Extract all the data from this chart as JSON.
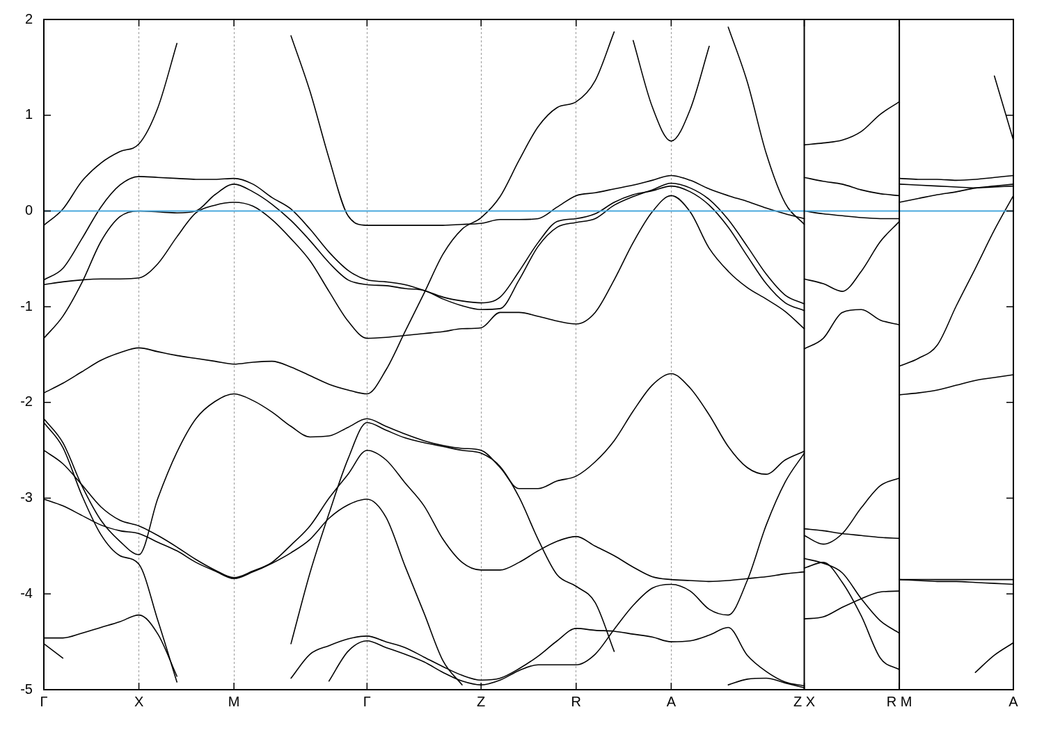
{
  "chart_data": {
    "type": "line",
    "categories": [
      "Γ",
      null,
      null,
      null,
      null,
      "X",
      null,
      null,
      null,
      null,
      "M",
      null,
      null,
      null,
      null,
      null,
      null,
      "Γ",
      null,
      null,
      null,
      null,
      null,
      "Z",
      null,
      null,
      null,
      null,
      "R",
      null,
      null,
      null,
      null,
      "A",
      null,
      null,
      null,
      null,
      null,
      null,
      "Z X",
      null,
      null,
      null,
      null,
      "R M",
      null,
      null,
      null,
      null,
      null,
      "A"
    ],
    "ylim": [
      -5,
      2
    ],
    "yticks": [
      -5,
      -4,
      -3,
      -2,
      -1,
      0,
      1,
      2
    ],
    "grid": "x",
    "ref_lines": [
      {
        "axis": "y",
        "value": 0,
        "color": "#4aa9de"
      },
      {
        "axis": "x",
        "value": "Z X",
        "color": "#000000"
      },
      {
        "axis": "x",
        "value": "R M",
        "color": "#000000"
      }
    ],
    "series": [
      {
        "color": "#000000",
        "values": [
          -0.15,
          0.02,
          0.31,
          0.5,
          0.62,
          0.7,
          1.08,
          1.75,
          null,
          null,
          null,
          null,
          null,
          null,
          null,
          null,
          null,
          null,
          null,
          null,
          null,
          null,
          null,
          null,
          null,
          null,
          null,
          null,
          null,
          null,
          null,
          null,
          null,
          null,
          null,
          null,
          null,
          null,
          null,
          null,
          null,
          null,
          null,
          null,
          null,
          null,
          null,
          null,
          null,
          null,
          null,
          null
        ]
      },
      {
        "color": "#000000",
        "values": [
          null,
          null,
          null,
          null,
          null,
          null,
          null,
          null,
          null,
          null,
          null,
          null,
          null,
          1.83,
          1.25,
          0.55,
          -0.05,
          -0.15,
          -0.15,
          -0.15,
          -0.15,
          -0.15,
          -0.14,
          -0.13,
          -0.09,
          -0.09,
          -0.08,
          0.04,
          0.16,
          0.19,
          0.23,
          0.27,
          0.32,
          0.37,
          0.32,
          0.23,
          0.16,
          0.1,
          0.03,
          -0.03,
          -0.08,
          null,
          null,
          null,
          null,
          null,
          null,
          null,
          null,
          null,
          null,
          null
        ]
      },
      {
        "color": "#000000",
        "values": [
          -1.9,
          -1.8,
          -1.68,
          -1.56,
          -1.48,
          -1.43,
          -1.47,
          -1.51,
          -1.54,
          -1.57,
          -1.6,
          -1.58,
          -1.57,
          -1.63,
          -1.72,
          -1.81,
          -1.87,
          -1.91,
          -1.66,
          -1.26,
          -0.86,
          -0.45,
          -0.19,
          -0.07,
          0.15,
          0.53,
          0.88,
          1.08,
          1.14,
          1.36,
          1.87,
          null,
          null,
          null,
          null,
          null,
          null,
          null,
          null,
          null,
          null,
          null,
          null,
          null,
          null,
          null,
          null,
          null,
          null,
          null,
          null,
          null
        ]
      },
      {
        "color": "#000000",
        "values": [
          null,
          null,
          null,
          null,
          null,
          null,
          null,
          null,
          null,
          null,
          null,
          null,
          null,
          null,
          null,
          null,
          null,
          null,
          null,
          null,
          null,
          null,
          null,
          null,
          null,
          null,
          null,
          null,
          null,
          null,
          null,
          1.78,
          1.09,
          0.73,
          1.06,
          1.72,
          null,
          null,
          null,
          null,
          null,
          null,
          null,
          null,
          null,
          null,
          null,
          null,
          null,
          null,
          null,
          null
        ]
      },
      {
        "color": "#000000",
        "values": [
          null,
          null,
          null,
          null,
          null,
          null,
          null,
          null,
          null,
          null,
          null,
          null,
          null,
          null,
          null,
          null,
          null,
          null,
          null,
          null,
          null,
          null,
          null,
          null,
          null,
          null,
          null,
          null,
          null,
          null,
          null,
          null,
          null,
          null,
          null,
          null,
          1.92,
          1.35,
          0.6,
          0.08,
          -0.14,
          null,
          null,
          null,
          null,
          null,
          null,
          null,
          null,
          null,
          null,
          null
        ]
      },
      {
        "color": "#000000",
        "values": [
          -0.72,
          -0.6,
          -0.29,
          0.04,
          0.27,
          0.36,
          0.35,
          0.34,
          0.33,
          0.33,
          0.34,
          0.28,
          0.14,
          0.02,
          -0.19,
          -0.43,
          -0.62,
          -0.72,
          -0.74,
          -0.77,
          -0.83,
          -0.9,
          -0.94,
          -0.96,
          -0.9,
          -0.63,
          -0.33,
          -0.11,
          -0.08,
          -0.03,
          0.09,
          0.17,
          0.21,
          0.26,
          0.2,
          0.06,
          -0.17,
          -0.47,
          -0.76,
          -0.96,
          -1.04,
          null,
          null,
          null,
          null,
          null,
          null,
          null,
          null,
          null,
          null,
          null
        ]
      },
      {
        "color": "#000000",
        "values": [
          -0.77,
          -0.74,
          -0.72,
          -0.71,
          -0.71,
          -0.7,
          -0.55,
          -0.27,
          -0.02,
          0.06,
          0.09,
          0.05,
          -0.09,
          -0.29,
          -0.52,
          -0.84,
          -1.15,
          -1.33,
          -1.32,
          -1.3,
          -1.28,
          -1.26,
          -1.23,
          -1.22,
          -1.06,
          -1.06,
          -1.1,
          -1.15,
          -1.18,
          -1.06,
          -0.72,
          -0.33,
          -0.01,
          0.16,
          -0.01,
          -0.39,
          -0.63,
          -0.8,
          -0.92,
          -1.05,
          -1.23,
          null,
          null,
          null,
          null,
          null,
          null,
          null,
          null,
          null,
          null,
          null
        ]
      },
      {
        "color": "#000000",
        "values": [
          -1.33,
          -1.1,
          -0.75,
          -0.32,
          -0.06,
          0,
          -0.01,
          -0.02,
          0,
          0.17,
          0.28,
          0.2,
          0.07,
          -0.1,
          -0.31,
          -0.54,
          -0.72,
          -0.77,
          -0.78,
          -0.81,
          -0.83,
          -0.92,
          -0.99,
          -1.03,
          -1.02,
          -0.72,
          -0.37,
          -0.17,
          -0.12,
          -0.08,
          0.06,
          0.15,
          0.22,
          0.29,
          0.24,
          0.12,
          -0.09,
          -0.37,
          -0.66,
          -0.88,
          -0.97,
          null,
          null,
          null,
          null,
          null,
          null,
          null,
          null,
          null,
          null,
          null
        ]
      },
      {
        "color": "#000000",
        "values": [
          -2.17,
          -2.42,
          -2.87,
          -3.23,
          -3.45,
          -3.59,
          -3.0,
          -2.52,
          -2.17,
          -1.99,
          -1.91,
          -1.98,
          -2.1,
          -2.25,
          -2.36,
          -2.35,
          -2.26,
          -2.17,
          -2.25,
          -2.33,
          -2.4,
          -2.45,
          -2.48,
          -2.5,
          -2.68,
          -2.9,
          -2.9,
          -2.82,
          -2.77,
          -2.62,
          -2.4,
          -2.09,
          -1.82,
          -1.7,
          -1.85,
          -2.13,
          -2.46,
          -2.68,
          -2.75,
          -2.6,
          -2.51,
          null,
          null,
          null,
          null,
          null,
          null,
          null,
          null,
          null,
          null,
          null
        ]
      },
      {
        "color": "#000000",
        "values": [
          -2.21,
          -2.47,
          -2.97,
          -3.38,
          -3.6,
          -3.69,
          -4.28,
          -4.92,
          null,
          null,
          null,
          null,
          null,
          null,
          null,
          null,
          null,
          null,
          null,
          null,
          null,
          null,
          null,
          null,
          null,
          null,
          null,
          null,
          null,
          null,
          null,
          null,
          null,
          null,
          null,
          null,
          null,
          null,
          null,
          null,
          null,
          null,
          null,
          null,
          null,
          null,
          null,
          null,
          null,
          null,
          null,
          null
        ]
      },
      {
        "color": "#000000",
        "values": [
          -2.5,
          -2.64,
          -2.86,
          -3.09,
          -3.23,
          -3.29,
          -3.39,
          -3.51,
          -3.64,
          -3.75,
          -3.83,
          -3.76,
          -3.67,
          -3.49,
          -3.29,
          -3.0,
          -2.75,
          -2.5,
          -2.6,
          -2.84,
          -3.08,
          -3.43,
          -3.67,
          -3.75,
          -3.75,
          -3.67,
          -3.55,
          -3.45,
          -3.4,
          -3.5,
          -3.6,
          -3.72,
          -3.82,
          -3.85,
          -3.86,
          -3.87,
          -3.86,
          -3.84,
          -3.82,
          -3.79,
          -3.77,
          null,
          null,
          null,
          null,
          null,
          null,
          null,
          null,
          null,
          null,
          null
        ]
      },
      {
        "color": "#000000",
        "values": [
          -3.01,
          -3.08,
          -3.18,
          -3.28,
          -3.34,
          -3.37,
          -3.46,
          -3.55,
          -3.67,
          -3.76,
          -3.84,
          -3.77,
          -3.68,
          -3.57,
          -3.43,
          -3.21,
          -3.07,
          -3.01,
          -3.2,
          -3.71,
          -4.2,
          -4.7,
          -4.95,
          null,
          null,
          null,
          null,
          null,
          null,
          null,
          null,
          null,
          null,
          null,
          null,
          null,
          null,
          null,
          null,
          null,
          null,
          null,
          null,
          null,
          null,
          null,
          null,
          null,
          null,
          null,
          null,
          null
        ]
      },
      {
        "color": "#000000",
        "values": [
          null,
          null,
          null,
          null,
          null,
          null,
          null,
          null,
          null,
          null,
          null,
          null,
          null,
          -4.52,
          -3.78,
          -3.16,
          -2.59,
          -2.21,
          -2.29,
          -2.37,
          -2.42,
          -2.46,
          -2.5,
          -2.53,
          -2.67,
          -2.99,
          -3.43,
          -3.8,
          -3.92,
          -4.09,
          -4.6,
          null,
          null,
          null,
          null,
          null,
          null,
          null,
          null,
          null,
          null,
          null,
          null,
          null,
          null,
          null,
          null,
          null,
          null,
          null,
          null,
          null
        ]
      },
      {
        "color": "#000000",
        "values": [
          -4.46,
          -4.46,
          -4.41,
          -4.35,
          -4.29,
          -4.22,
          -4.42,
          -4.86,
          null,
          null,
          null,
          null,
          null,
          null,
          null,
          null,
          null,
          null,
          null,
          null,
          null,
          null,
          null,
          null,
          null,
          null,
          null,
          null,
          null,
          null,
          null,
          null,
          null,
          null,
          null,
          null,
          null,
          null,
          null,
          null,
          null,
          null,
          null,
          null,
          null,
          null,
          null,
          null,
          null,
          null,
          null,
          null
        ]
      },
      {
        "color": "#000000",
        "values": [
          -4.52,
          -4.67,
          null,
          null,
          null,
          null,
          null,
          null,
          null,
          null,
          null,
          null,
          null,
          null,
          null,
          null,
          null,
          null,
          null,
          null,
          null,
          null,
          null,
          null,
          null,
          null,
          null,
          null,
          null,
          null,
          null,
          null,
          null,
          null,
          null,
          null,
          null,
          null,
          null,
          null,
          null,
          null,
          null,
          null,
          null,
          null,
          null,
          null,
          null,
          null,
          null,
          null
        ]
      },
      {
        "color": "#000000",
        "values": [
          null,
          null,
          null,
          null,
          null,
          null,
          null,
          null,
          null,
          null,
          null,
          null,
          null,
          -4.88,
          -4.63,
          -4.54,
          -4.47,
          -4.44,
          -4.5,
          -4.56,
          -4.66,
          -4.76,
          -4.85,
          -4.9,
          -4.88,
          -4.78,
          -4.65,
          -4.49,
          -4.36,
          -4.38,
          -4.39,
          -4.42,
          -4.45,
          -4.5,
          -4.49,
          -4.43,
          -4.35,
          -4.64,
          -4.81,
          -4.92,
          -4.96,
          null,
          null,
          null,
          null,
          null,
          null,
          null,
          null,
          null,
          null,
          null
        ]
      },
      {
        "color": "#000000",
        "values": [
          null,
          null,
          null,
          null,
          null,
          null,
          null,
          null,
          null,
          null,
          null,
          null,
          null,
          null,
          null,
          -4.91,
          -4.6,
          -4.49,
          -4.56,
          -4.63,
          -4.71,
          -4.82,
          -4.91,
          -4.95,
          -4.9,
          -4.8,
          -4.74,
          -4.74,
          -4.74,
          -4.63,
          -4.37,
          -4.12,
          -3.94,
          -3.9,
          -3.97,
          -4.16,
          -4.22,
          -3.86,
          -3.28,
          -2.83,
          -2.53,
          null,
          null,
          null,
          null,
          null,
          null,
          null,
          null,
          null,
          null,
          null
        ]
      },
      {
        "color": "#000000",
        "values": [
          null,
          null,
          null,
          null,
          null,
          null,
          null,
          null,
          null,
          null,
          null,
          null,
          null,
          null,
          null,
          null,
          null,
          null,
          null,
          null,
          null,
          null,
          null,
          null,
          null,
          null,
          null,
          null,
          null,
          null,
          null,
          null,
          null,
          null,
          null,
          null,
          -4.95,
          -4.89,
          -4.88,
          -4.93,
          -4.98,
          null,
          null,
          null,
          null,
          null,
          null,
          null,
          null,
          null,
          null,
          null
        ]
      },
      {
        "color": "#000000",
        "values": [
          null,
          null,
          null,
          null,
          null,
          null,
          null,
          null,
          null,
          null,
          null,
          null,
          null,
          null,
          null,
          null,
          null,
          null,
          null,
          null,
          null,
          null,
          null,
          null,
          null,
          null,
          null,
          null,
          null,
          null,
          null,
          null,
          null,
          null,
          null,
          null,
          null,
          null,
          null,
          null,
          0.69,
          0.71,
          0.74,
          0.83,
          1.01,
          1.14,
          null,
          null,
          null,
          null,
          null,
          null
        ]
      },
      {
        "color": "#000000",
        "values": [
          null,
          null,
          null,
          null,
          null,
          null,
          null,
          null,
          null,
          null,
          null,
          null,
          null,
          null,
          null,
          null,
          null,
          null,
          null,
          null,
          null,
          null,
          null,
          null,
          null,
          null,
          null,
          null,
          null,
          null,
          null,
          null,
          null,
          null,
          null,
          null,
          null,
          null,
          null,
          null,
          0.35,
          0.31,
          0.28,
          0.22,
          0.18,
          0.16,
          null,
          null,
          null,
          null,
          null,
          null
        ]
      },
      {
        "color": "#000000",
        "values": [
          null,
          null,
          null,
          null,
          null,
          null,
          null,
          null,
          null,
          null,
          null,
          null,
          null,
          null,
          null,
          null,
          null,
          null,
          null,
          null,
          null,
          null,
          null,
          null,
          null,
          null,
          null,
          null,
          null,
          null,
          null,
          null,
          null,
          null,
          null,
          null,
          null,
          null,
          null,
          null,
          0,
          -0.03,
          -0.05,
          -0.07,
          -0.08,
          -0.08,
          null,
          null,
          null,
          null,
          null,
          null
        ]
      },
      {
        "color": "#000000",
        "values": [
          null,
          null,
          null,
          null,
          null,
          null,
          null,
          null,
          null,
          null,
          null,
          null,
          null,
          null,
          null,
          null,
          null,
          null,
          null,
          null,
          null,
          null,
          null,
          null,
          null,
          null,
          null,
          null,
          null,
          null,
          null,
          null,
          null,
          null,
          null,
          null,
          null,
          null,
          null,
          null,
          -0.71,
          -0.76,
          -0.84,
          -0.63,
          -0.32,
          -0.11,
          null,
          null,
          null,
          null,
          null,
          null
        ]
      },
      {
        "color": "#000000",
        "values": [
          null,
          null,
          null,
          null,
          null,
          null,
          null,
          null,
          null,
          null,
          null,
          null,
          null,
          null,
          null,
          null,
          null,
          null,
          null,
          null,
          null,
          null,
          null,
          null,
          null,
          null,
          null,
          null,
          null,
          null,
          null,
          null,
          null,
          null,
          null,
          null,
          null,
          null,
          null,
          null,
          -1.44,
          -1.33,
          -1.06,
          -1.03,
          -1.14,
          -1.19,
          null,
          null,
          null,
          null,
          null,
          null
        ]
      },
      {
        "color": "#000000",
        "values": [
          null,
          null,
          null,
          null,
          null,
          null,
          null,
          null,
          null,
          null,
          null,
          null,
          null,
          null,
          null,
          null,
          null,
          null,
          null,
          null,
          null,
          null,
          null,
          null,
          null,
          null,
          null,
          null,
          null,
          null,
          null,
          null,
          null,
          null,
          null,
          null,
          null,
          null,
          null,
          null,
          -3.32,
          -3.34,
          -3.37,
          -3.39,
          -3.41,
          -3.42,
          null,
          null,
          null,
          null,
          null,
          null
        ]
      },
      {
        "color": "#000000",
        "values": [
          null,
          null,
          null,
          null,
          null,
          null,
          null,
          null,
          null,
          null,
          null,
          null,
          null,
          null,
          null,
          null,
          null,
          null,
          null,
          null,
          null,
          null,
          null,
          null,
          null,
          null,
          null,
          null,
          null,
          null,
          null,
          null,
          null,
          null,
          null,
          null,
          null,
          null,
          null,
          null,
          -3.39,
          -3.48,
          -3.37,
          -3.1,
          -2.87,
          -2.79,
          null,
          null,
          null,
          null,
          null,
          null
        ]
      },
      {
        "color": "#000000",
        "values": [
          null,
          null,
          null,
          null,
          null,
          null,
          null,
          null,
          null,
          null,
          null,
          null,
          null,
          null,
          null,
          null,
          null,
          null,
          null,
          null,
          null,
          null,
          null,
          null,
          null,
          null,
          null,
          null,
          null,
          null,
          null,
          null,
          null,
          null,
          null,
          null,
          null,
          null,
          null,
          null,
          -3.63,
          -3.68,
          -3.78,
          -4.05,
          -4.28,
          -4.41,
          null,
          null,
          null,
          null,
          null,
          null
        ]
      },
      {
        "color": "#000000",
        "values": [
          null,
          null,
          null,
          null,
          null,
          null,
          null,
          null,
          null,
          null,
          null,
          null,
          null,
          null,
          null,
          null,
          null,
          null,
          null,
          null,
          null,
          null,
          null,
          null,
          null,
          null,
          null,
          null,
          null,
          null,
          null,
          null,
          null,
          null,
          null,
          null,
          null,
          null,
          null,
          null,
          -3.73,
          -3.67,
          -3.88,
          -4.23,
          -4.67,
          -4.79,
          null,
          null,
          null,
          null,
          null,
          null
        ]
      },
      {
        "color": "#000000",
        "values": [
          null,
          null,
          null,
          null,
          null,
          null,
          null,
          null,
          null,
          null,
          null,
          null,
          null,
          null,
          null,
          null,
          null,
          null,
          null,
          null,
          null,
          null,
          null,
          null,
          null,
          null,
          null,
          null,
          null,
          null,
          null,
          null,
          null,
          null,
          null,
          null,
          null,
          null,
          null,
          null,
          -4.26,
          -4.24,
          -4.14,
          -4.05,
          -3.98,
          -3.97,
          null,
          null,
          null,
          null,
          null,
          null
        ]
      },
      {
        "color": "#000000",
        "values": [
          null,
          null,
          null,
          null,
          null,
          null,
          null,
          null,
          null,
          null,
          null,
          null,
          null,
          null,
          null,
          null,
          null,
          null,
          null,
          null,
          null,
          null,
          null,
          null,
          null,
          null,
          null,
          null,
          null,
          null,
          null,
          null,
          null,
          null,
          null,
          null,
          null,
          null,
          null,
          null,
          null,
          null,
          null,
          null,
          null,
          0.34,
          0.33,
          0.33,
          0.32,
          0.33,
          0.35,
          0.37
        ]
      },
      {
        "color": "#000000",
        "values": [
          null,
          null,
          null,
          null,
          null,
          null,
          null,
          null,
          null,
          null,
          null,
          null,
          null,
          null,
          null,
          null,
          null,
          null,
          null,
          null,
          null,
          null,
          null,
          null,
          null,
          null,
          null,
          null,
          null,
          null,
          null,
          null,
          null,
          null,
          null,
          null,
          null,
          null,
          null,
          null,
          null,
          null,
          null,
          null,
          null,
          0.28,
          0.27,
          0.26,
          0.25,
          0.24,
          0.25,
          0.26
        ]
      },
      {
        "color": "#000000",
        "values": [
          null,
          null,
          null,
          null,
          null,
          null,
          null,
          null,
          null,
          null,
          null,
          null,
          null,
          null,
          null,
          null,
          null,
          null,
          null,
          null,
          null,
          null,
          null,
          null,
          null,
          null,
          null,
          null,
          null,
          null,
          null,
          null,
          null,
          null,
          null,
          null,
          null,
          null,
          null,
          null,
          null,
          null,
          null,
          null,
          null,
          0.09,
          0.13,
          0.17,
          0.2,
          0.24,
          0.26,
          0.28
        ]
      },
      {
        "color": "#000000",
        "values": [
          null,
          null,
          null,
          null,
          null,
          null,
          null,
          null,
          null,
          null,
          null,
          null,
          null,
          null,
          null,
          null,
          null,
          null,
          null,
          null,
          null,
          null,
          null,
          null,
          null,
          null,
          null,
          null,
          null,
          null,
          null,
          null,
          null,
          null,
          null,
          null,
          null,
          null,
          null,
          null,
          null,
          null,
          null,
          null,
          null,
          -1.62,
          -1.54,
          -1.4,
          -0.99,
          -0.6,
          -0.2,
          0.16
        ]
      },
      {
        "color": "#000000",
        "values": [
          null,
          null,
          null,
          null,
          null,
          null,
          null,
          null,
          null,
          null,
          null,
          null,
          null,
          null,
          null,
          null,
          null,
          null,
          null,
          null,
          null,
          null,
          null,
          null,
          null,
          null,
          null,
          null,
          null,
          null,
          null,
          null,
          null,
          null,
          null,
          null,
          null,
          null,
          null,
          null,
          null,
          null,
          null,
          null,
          null,
          null,
          null,
          null,
          null,
          null,
          1.41,
          0.74
        ]
      },
      {
        "color": "#000000",
        "values": [
          null,
          null,
          null,
          null,
          null,
          null,
          null,
          null,
          null,
          null,
          null,
          null,
          null,
          null,
          null,
          null,
          null,
          null,
          null,
          null,
          null,
          null,
          null,
          null,
          null,
          null,
          null,
          null,
          null,
          null,
          null,
          null,
          null,
          null,
          null,
          null,
          null,
          null,
          null,
          null,
          null,
          null,
          null,
          null,
          null,
          -1.92,
          -1.9,
          -1.87,
          -1.82,
          -1.77,
          -1.74,
          -1.71
        ]
      },
      {
        "color": "#000000",
        "values": [
          null,
          null,
          null,
          null,
          null,
          null,
          null,
          null,
          null,
          null,
          null,
          null,
          null,
          null,
          null,
          null,
          null,
          null,
          null,
          null,
          null,
          null,
          null,
          null,
          null,
          null,
          null,
          null,
          null,
          null,
          null,
          null,
          null,
          null,
          null,
          null,
          null,
          null,
          null,
          null,
          null,
          null,
          null,
          null,
          null,
          -3.85,
          -3.85,
          -3.85,
          -3.85,
          -3.85,
          -3.85,
          -3.85
        ]
      },
      {
        "color": "#000000",
        "values": [
          null,
          null,
          null,
          null,
          null,
          null,
          null,
          null,
          null,
          null,
          null,
          null,
          null,
          null,
          null,
          null,
          null,
          null,
          null,
          null,
          null,
          null,
          null,
          null,
          null,
          null,
          null,
          null,
          null,
          null,
          null,
          null,
          null,
          null,
          null,
          null,
          null,
          null,
          null,
          null,
          null,
          null,
          null,
          null,
          null,
          -3.85,
          -3.86,
          -3.87,
          -3.87,
          -3.88,
          -3.89,
          -3.9
        ]
      },
      {
        "color": "#000000",
        "values": [
          null,
          null,
          null,
          null,
          null,
          null,
          null,
          null,
          null,
          null,
          null,
          null,
          null,
          null,
          null,
          null,
          null,
          null,
          null,
          null,
          null,
          null,
          null,
          null,
          null,
          null,
          null,
          null,
          null,
          null,
          null,
          null,
          null,
          null,
          null,
          null,
          null,
          null,
          null,
          null,
          null,
          null,
          null,
          null,
          null,
          null,
          null,
          null,
          null,
          -4.82,
          -4.64,
          -4.51
        ]
      }
    ]
  }
}
